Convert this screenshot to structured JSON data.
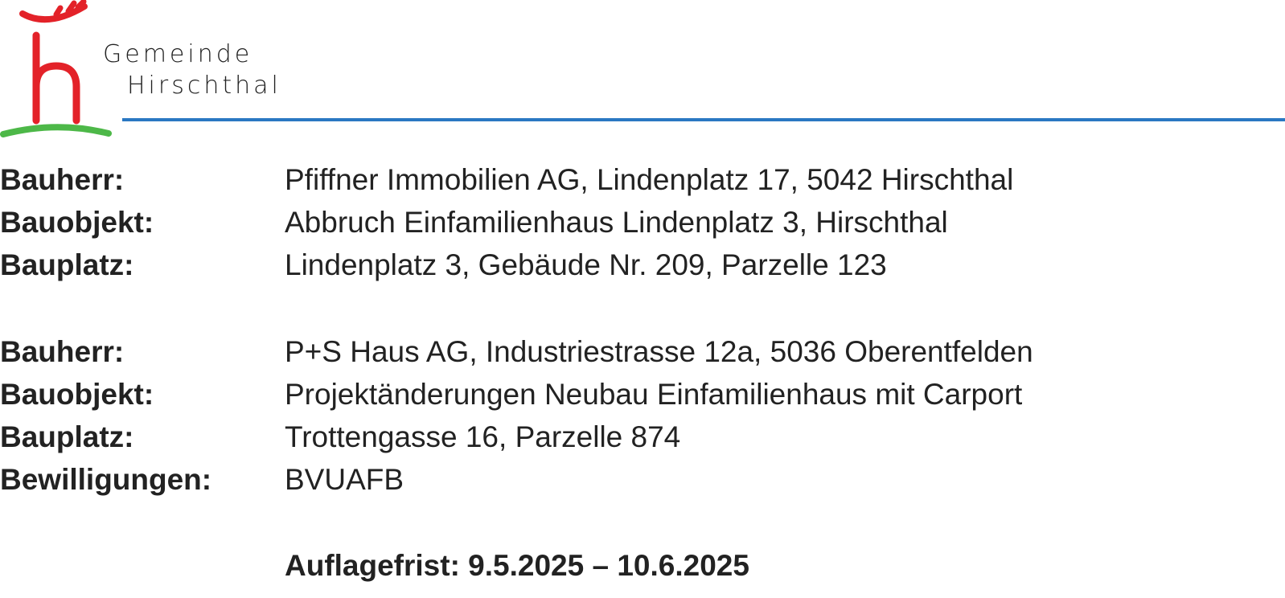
{
  "header": {
    "logo_line1": "Gemeinde",
    "logo_line2": "Hirschthal",
    "colors": {
      "red": "#e32229",
      "green": "#4db848",
      "blue": "#2a78c2"
    }
  },
  "entries": [
    {
      "label": "Bauherr:",
      "value": "Pfiffner Immobilien AG, Lindenplatz 17, 5042 Hirschthal"
    },
    {
      "label": "Bauobjekt:",
      "value": "Abbruch Einfamilienhaus Lindenplatz 3, Hirschthal"
    },
    {
      "label": "Bauplatz:",
      "value": "Lindenplatz 3, Gebäude Nr. 209, Parzelle 123"
    },
    {
      "label": "Bauherr:",
      "value": "P+S Haus AG, Industriestrasse 12a, 5036 Oberentfelden"
    },
    {
      "label": "Bauobjekt:",
      "value": "Projektänderungen Neubau Einfamilienhaus mit Carport"
    },
    {
      "label": "Bauplatz:",
      "value": "Trottengasse 16, Parzelle 874"
    },
    {
      "label": "Bewilligungen:",
      "value": "BVUAFB"
    }
  ],
  "auflagefrist": "Auflagefrist: 9.5.2025 – 10.6.2025"
}
